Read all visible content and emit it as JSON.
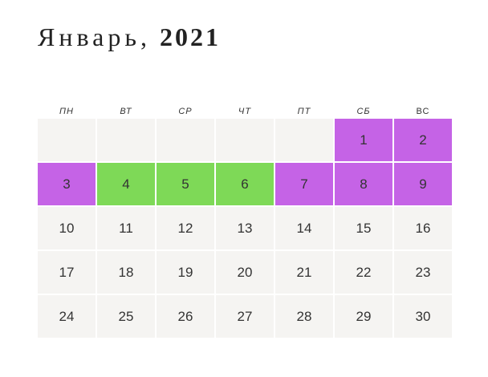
{
  "header": {
    "month": "Январь,",
    "year": "2021"
  },
  "weekdays": [
    "ПН",
    "ВТ",
    "СР",
    "ЧТ",
    "ПТ",
    "СБ",
    "ВС"
  ],
  "colors": {
    "holiday": "#c563e6",
    "green_day": "#7ed957",
    "regular": "#f5f4f2"
  },
  "days": [
    {
      "label": "",
      "type": "empty"
    },
    {
      "label": "",
      "type": "empty"
    },
    {
      "label": "",
      "type": "empty"
    },
    {
      "label": "",
      "type": "empty"
    },
    {
      "label": "",
      "type": "empty"
    },
    {
      "label": "1",
      "type": "holiday"
    },
    {
      "label": "2",
      "type": "holiday"
    },
    {
      "label": "3",
      "type": "holiday"
    },
    {
      "label": "4",
      "type": "green"
    },
    {
      "label": "5",
      "type": "green"
    },
    {
      "label": "6",
      "type": "green"
    },
    {
      "label": "7",
      "type": "holiday"
    },
    {
      "label": "8",
      "type": "holiday"
    },
    {
      "label": "9",
      "type": "holiday"
    },
    {
      "label": "10",
      "type": "regular"
    },
    {
      "label": "11",
      "type": "regular"
    },
    {
      "label": "12",
      "type": "regular"
    },
    {
      "label": "13",
      "type": "regular"
    },
    {
      "label": "14",
      "type": "regular"
    },
    {
      "label": "15",
      "type": "regular"
    },
    {
      "label": "16",
      "type": "regular"
    },
    {
      "label": "17",
      "type": "regular"
    },
    {
      "label": "18",
      "type": "regular"
    },
    {
      "label": "19",
      "type": "regular"
    },
    {
      "label": "20",
      "type": "regular"
    },
    {
      "label": "21",
      "type": "regular"
    },
    {
      "label": "22",
      "type": "regular"
    },
    {
      "label": "23",
      "type": "regular"
    },
    {
      "label": "24",
      "type": "regular"
    },
    {
      "label": "25",
      "type": "regular"
    },
    {
      "label": "26",
      "type": "regular"
    },
    {
      "label": "27",
      "type": "regular"
    },
    {
      "label": "28",
      "type": "regular"
    },
    {
      "label": "29",
      "type": "regular"
    },
    {
      "label": "30",
      "type": "regular"
    }
  ]
}
